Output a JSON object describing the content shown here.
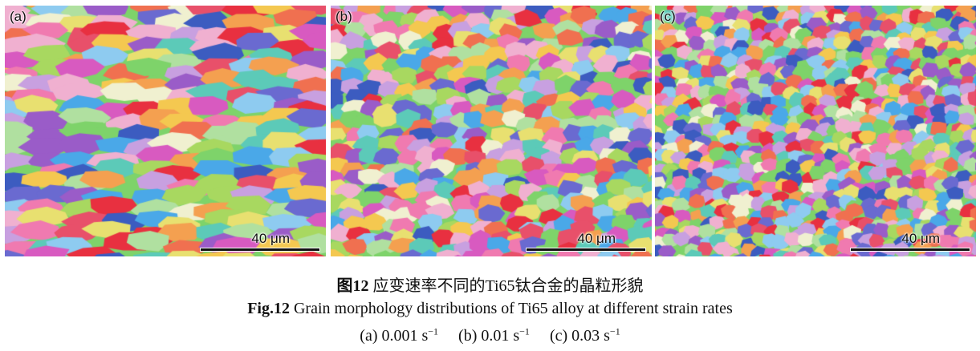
{
  "panels": [
    {
      "label": "(a)",
      "scale_bar": "40 μm",
      "grain_style": "coarse-elongated"
    },
    {
      "label": "(b)",
      "scale_bar": "40 μm",
      "grain_style": "medium-equiaxed"
    },
    {
      "label": "(c)",
      "scale_bar": "40 μm",
      "grain_style": "fine-equiaxed"
    }
  ],
  "caption": {
    "cn_prefix": "图12",
    "cn_text": "应变速率不同的Ti65钛合金的晶粒形貌",
    "en_prefix": "Fig.12",
    "en_text": "Grain morphology distributions of Ti65 alloy at different strain rates",
    "subs": [
      {
        "label": "(a) 0.001 s",
        "exp": "−1"
      },
      {
        "label": "(b) 0.01 s",
        "exp": "−1"
      },
      {
        "label": "(c) 0.03 s",
        "exp": "−1"
      }
    ]
  },
  "palette": [
    "#e8506a",
    "#f07ab0",
    "#d85ac0",
    "#9a5cc8",
    "#6a6ad0",
    "#3c5cc0",
    "#4aa8e8",
    "#8ecbf0",
    "#5ccab8",
    "#7ed36a",
    "#a8d860",
    "#e8e070",
    "#f4c850",
    "#f4a050",
    "#f07050",
    "#e83040",
    "#c8a0e0",
    "#f0b0d0",
    "#b0e0a0",
    "#f0f0d0"
  ]
}
